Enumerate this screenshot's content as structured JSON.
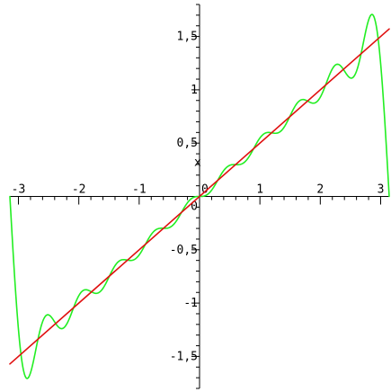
{
  "chart_data": {
    "type": "line",
    "title": "",
    "xlabel": "x",
    "ylabel": "",
    "xlim": [
      -3.14159,
      3.14159
    ],
    "ylim": [
      -1.8,
      1.8
    ],
    "grid": false,
    "x_ticks": [
      {
        "value": -3,
        "label": "-3"
      },
      {
        "value": -2,
        "label": "-2"
      },
      {
        "value": -1,
        "label": "-1"
      },
      {
        "value": 0,
        "label": "0"
      },
      {
        "value": 1,
        "label": "1"
      },
      {
        "value": 2,
        "label": "2"
      },
      {
        "value": 3,
        "label": "3"
      }
    ],
    "y_ticks": [
      {
        "value": -1.5,
        "label": "-1,5"
      },
      {
        "value": -1,
        "label": "-1"
      },
      {
        "value": -0.5,
        "label": "-0,5"
      },
      {
        "value": 0.5,
        "label": "0,5"
      },
      {
        "value": 1,
        "label": "1"
      },
      {
        "value": 1.5,
        "label": "1,5"
      }
    ],
    "series": [
      {
        "function": "x / 2",
        "color": "#e01010",
        "samples": 2
      },
      {
        "function": "sum_{n=1..10} (-1)^(n+1) * sin(n*x) / n",
        "color": "#22ee22",
        "samples": 500
      }
    ]
  }
}
